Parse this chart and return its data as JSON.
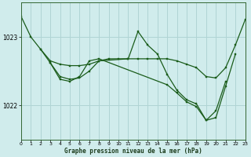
{
  "title": "Graphe pression niveau de la mer (hPa)",
  "background_color": "#d0ecec",
  "grid_color": "#b0d4d4",
  "line_color": "#1a5c1a",
  "xlim": [
    0,
    23
  ],
  "ylim": [
    1021.5,
    1023.5
  ],
  "yticks": [
    1022,
    1023
  ],
  "xticks": [
    0,
    1,
    2,
    3,
    4,
    5,
    6,
    7,
    8,
    9,
    10,
    11,
    12,
    13,
    14,
    15,
    16,
    17,
    18,
    19,
    20,
    21,
    22,
    23
  ],
  "series": [
    {
      "x": [
        0,
        1,
        2,
        3,
        4,
        5,
        6,
        7,
        8,
        9,
        10,
        11,
        12,
        13,
        14,
        15,
        16,
        17,
        18,
        19,
        20,
        21,
        22,
        23
      ],
      "y": [
        1023.3,
        1023.0,
        1022.82,
        1022.65,
        1022.6,
        1022.58,
        1022.58,
        1022.6,
        1022.65,
        1022.68,
        1022.68,
        1022.68,
        1022.68,
        1022.68,
        1022.68,
        1022.68,
        1022.65,
        1022.6,
        1022.55,
        1022.42,
        1022.4,
        1022.55,
        1022.88,
        1023.25
      ]
    },
    {
      "x": [
        2,
        3,
        4,
        5,
        6,
        7,
        8,
        11,
        12,
        13,
        14,
        15,
        16,
        17,
        18,
        19,
        20,
        21,
        22
      ],
      "y": [
        1022.82,
        1022.62,
        1022.42,
        1022.38,
        1022.4,
        1022.5,
        1022.65,
        1022.68,
        1023.08,
        1022.88,
        1022.75,
        1022.45,
        1022.22,
        1022.08,
        1022.02,
        1021.78,
        1021.82,
        1022.28,
        1022.75
      ]
    },
    {
      "x": [
        3,
        4,
        5,
        6,
        7,
        8,
        15,
        16,
        17,
        18,
        19,
        20,
        21
      ],
      "y": [
        1022.62,
        1022.38,
        1022.35,
        1022.42,
        1022.65,
        1022.68,
        1022.3,
        1022.18,
        1022.05,
        1021.98,
        1021.78,
        1021.92,
        1022.35
      ]
    }
  ]
}
